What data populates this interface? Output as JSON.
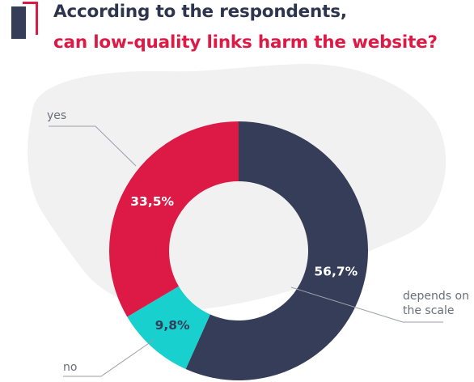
{
  "header": {
    "title_line1": "According to the respondents,",
    "title_line2": "can low-quality links harm the website?"
  },
  "colors": {
    "dark": "#353d58",
    "red": "#dc1a45",
    "teal": "#18d1cf",
    "title_dark": "#2d344e",
    "blob": "#f1f1f1",
    "leader": "#9a9ea6"
  },
  "chart_data": {
    "type": "pie",
    "donut": true,
    "title": "According to the respondents, can low-quality links harm the website?",
    "slices": [
      {
        "label": "depends on the scale",
        "label_lines": [
          "depends on",
          "the scale"
        ],
        "value": 56.7,
        "display": "56,7%",
        "color": "#353d58",
        "label_color": "#ffffff"
      },
      {
        "label": "no",
        "label_lines": [
          "no"
        ],
        "value": 9.8,
        "display": "9,8%",
        "color": "#18d1cf",
        "label_color": "#353d58"
      },
      {
        "label": "yes",
        "label_lines": [
          "yes"
        ],
        "value": 33.5,
        "display": "33,5%",
        "color": "#dc1a45",
        "label_color": "#ffffff"
      }
    ]
  }
}
